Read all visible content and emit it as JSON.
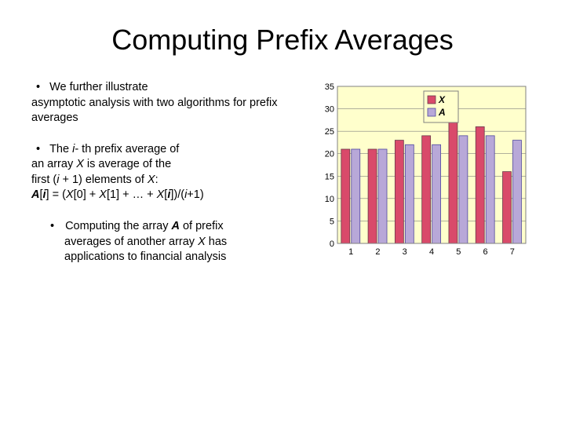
{
  "title": "Computing Prefix Averages",
  "bullets": {
    "b1_first": "We further illustrate",
    "b1_rest": "asymptotic analysis with two algorithms for prefix averages",
    "b2_first_before_i": "The ",
    "b2_i": "i",
    "b2_first_after_i": "- th prefix average of",
    "b2_line2_before": "an array ",
    "b2_X1": "X",
    "b2_line2_after": " is average of the",
    "b2_line3_before": "first (",
    "b2_i2": "i",
    "b2_line3_mid": " + 1) elements of ",
    "b2_X2": "X",
    "b2_line3_after": ":",
    "b2_formula_A": "A",
    "b2_formula_1": "[",
    "b2_formula_i3": "i",
    "b2_formula_2": "] = (",
    "b2_formula_X3": "X",
    "b2_formula_3": "[0] + ",
    "b2_formula_X4": "X",
    "b2_formula_4": "[1] + … + ",
    "b2_formula_X5": "X",
    "b2_formula_5": "[",
    "b2_formula_i4": "i",
    "b2_formula_6": "])/(",
    "b2_formula_i5": "i",
    "b2_formula_7": "+1)",
    "b3_first_before": "Computing the array ",
    "b3_A": "A",
    "b3_first_after": " of prefix",
    "b3_line2_before": "averages of another array ",
    "b3_X": "X",
    "b3_line2_after": " has",
    "b3_line3": "applications to financial analysis"
  },
  "chart": {
    "type": "bar",
    "categories": [
      "1",
      "2",
      "3",
      "4",
      "5",
      "6",
      "7"
    ],
    "seriesX": [
      21,
      21,
      23,
      24,
      31,
      26,
      16
    ],
    "seriesA": [
      21,
      21,
      22,
      22,
      24,
      24,
      23
    ],
    "ymin": 0,
    "ymax": 35,
    "ytick_step": 5,
    "background_color": "#ffffcc",
    "plot_border": "#808080",
    "grid_color": "#808080",
    "xcolor": "#d94a6a",
    "acolor": "#b8a8d8",
    "bar_border": "#6a3a4a",
    "bar_border_a": "#5048a0",
    "axis_font": 11,
    "legend_X": "X",
    "legend_A": "A",
    "legend_border": "#808080"
  }
}
